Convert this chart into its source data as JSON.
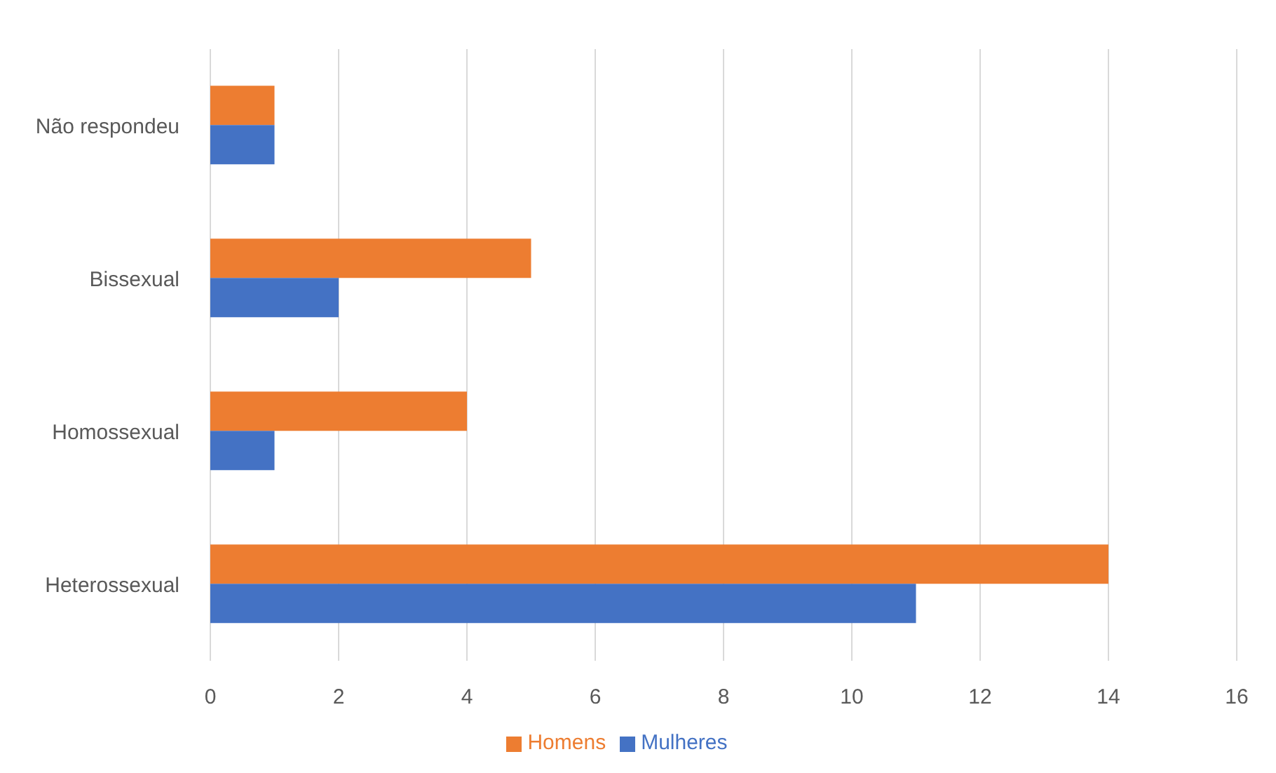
{
  "chart_data": {
    "type": "bar",
    "orientation": "horizontal",
    "categories": [
      "Não respondeu",
      "Bissexual",
      "Homossexual",
      "Heterossexual"
    ],
    "series": [
      {
        "name": "Homens",
        "color": "#ed7d31",
        "values": [
          1,
          5,
          4,
          14
        ]
      },
      {
        "name": "Mulheres",
        "color": "#4472c4",
        "values": [
          1,
          2,
          1,
          11
        ]
      }
    ],
    "xlim": [
      0,
      16
    ],
    "xticks": [
      0,
      2,
      4,
      6,
      8,
      10,
      12,
      14,
      16
    ],
    "grid": "x",
    "legend": "bottom"
  }
}
